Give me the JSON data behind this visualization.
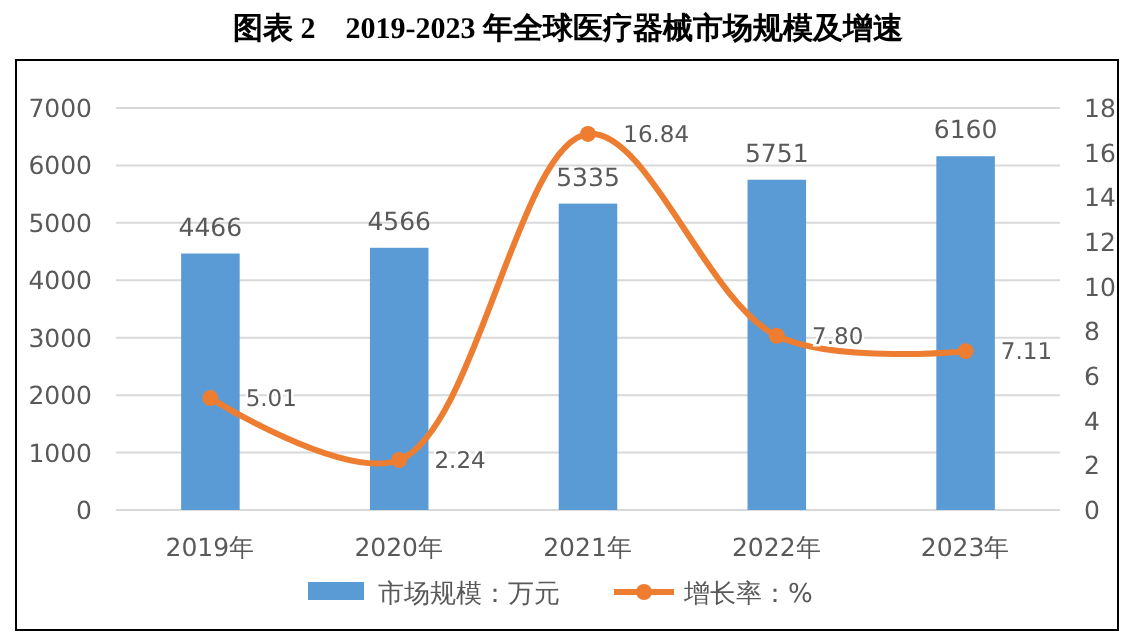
{
  "chart_data": {
    "type": "bar",
    "title": "图表 2　2019-2023 年全球医疗器械市场规模及增速",
    "categories": [
      "2019年",
      "2020年",
      "2021年",
      "2022年",
      "2023年"
    ],
    "series": [
      {
        "name": "市场规模：万元",
        "color": "#5b9bd5",
        "values": [
          4466,
          4566,
          5335,
          5751,
          6160
        ]
      },
      {
        "name": "增长率：%",
        "type": "line",
        "axis": "y2",
        "color": "#ed7d31",
        "values": [
          5.01,
          2.24,
          16.84,
          7.8,
          7.11
        ],
        "value_labels": [
          "5.01",
          "2.24",
          "16.84",
          "7.80",
          "7.11"
        ]
      }
    ],
    "data_labels": true,
    "marker": "circle",
    "line_style": "solid",
    "ylim": [
      0,
      7000
    ],
    "yticks": [
      0,
      1000,
      2000,
      3000,
      4000,
      5000,
      6000,
      7000
    ],
    "y2lim": [
      0,
      18
    ],
    "y2ticks": [
      0,
      2,
      4,
      6,
      8,
      10,
      12,
      14,
      16,
      18
    ],
    "grid": "y",
    "legend": "bottom"
  }
}
